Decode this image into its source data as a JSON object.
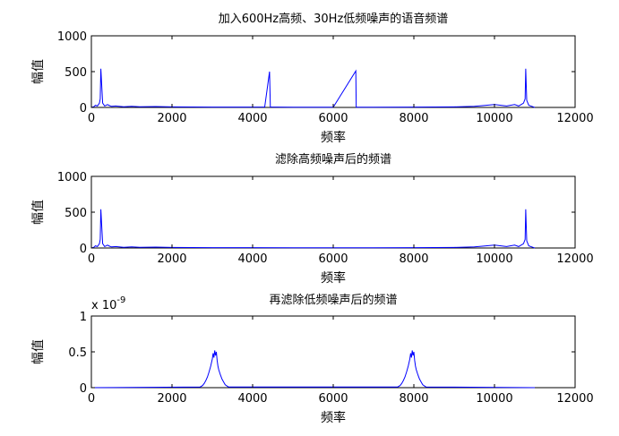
{
  "colors": {
    "spectrum": "#0000ff",
    "axes": "#000000",
    "background": "#ffffff"
  },
  "chart_data": [
    {
      "type": "line",
      "title": "加入600Hz高频、30Hz低频噪声的语音频谱",
      "xlabel": "频率",
      "ylabel": "幅值",
      "xlim": [
        0,
        12000
      ],
      "ylim": [
        0,
        1000
      ],
      "xticks": [
        "0",
        "2000",
        "4000",
        "6000",
        "8000",
        "10000",
        "12000"
      ],
      "yticks": [
        "0",
        "500",
        "1000"
      ],
      "scale_label": "",
      "grid": false,
      "series": [
        {
          "x": [
            0,
            60,
            100,
            150,
            200,
            220,
            235,
            280,
            330,
            400,
            450,
            500,
            600,
            800,
            1000,
            1200,
            1600,
            2000,
            3000,
            4000,
            4300,
            4420,
            4440,
            4600,
            5000,
            6000,
            6560,
            6570,
            7000,
            8000,
            9000,
            9500,
            9700,
            10000,
            10300,
            10500,
            10600,
            10720,
            10760,
            10775,
            10800,
            10850,
            10950,
            11000
          ],
          "y": [
            0,
            10,
            30,
            20,
            60,
            120,
            540,
            60,
            20,
            40,
            25,
            15,
            20,
            10,
            15,
            10,
            12,
            8,
            5,
            4,
            6,
            500,
            6,
            4,
            3,
            3,
            510,
            3,
            3,
            4,
            8,
            15,
            25,
            40,
            20,
            40,
            20,
            60,
            120,
            540,
            100,
            30,
            10,
            0
          ]
        }
      ]
    },
    {
      "type": "line",
      "title": "滤除高频噪声后的频谱",
      "xlabel": "频率",
      "ylabel": "幅值",
      "xlim": [
        0,
        12000
      ],
      "ylim": [
        0,
        1000
      ],
      "xticks": [
        "0",
        "2000",
        "4000",
        "6000",
        "8000",
        "10000",
        "12000"
      ],
      "yticks": [
        "0",
        "500",
        "1000"
      ],
      "scale_label": "",
      "grid": false,
      "series": [
        {
          "x": [
            0,
            60,
            100,
            150,
            200,
            220,
            235,
            280,
            330,
            400,
            450,
            500,
            600,
            800,
            1000,
            1200,
            1600,
            2000,
            3000,
            4000,
            5000,
            6000,
            7000,
            8000,
            9000,
            9500,
            9700,
            10000,
            10300,
            10500,
            10600,
            10720,
            10760,
            10775,
            10800,
            10850,
            10950,
            11000
          ],
          "y": [
            0,
            10,
            30,
            20,
            60,
            120,
            540,
            60,
            20,
            40,
            25,
            15,
            20,
            10,
            15,
            10,
            12,
            8,
            5,
            4,
            3,
            3,
            3,
            4,
            8,
            15,
            25,
            40,
            20,
            40,
            20,
            60,
            120,
            540,
            100,
            30,
            10,
            0
          ]
        }
      ]
    },
    {
      "type": "line",
      "title": "再滤除低频噪声后的频谱",
      "xlabel": "频率",
      "ylabel": "幅值",
      "xlim": [
        0,
        12000
      ],
      "ylim": [
        0,
        1
      ],
      "xticks": [
        "0",
        "2000",
        "4000",
        "6000",
        "8000",
        "10000",
        "12000"
      ],
      "yticks": [
        "0",
        "0.5",
        "1"
      ],
      "scale_label": "x 10-9",
      "scale_base": "x 10",
      "scale_exp": "-9",
      "grid": false,
      "series": [
        {
          "x": [
            0,
            2700,
            2760,
            2800,
            2840,
            2880,
            2920,
            2960,
            3000,
            3020,
            3040,
            3060,
            3080,
            3100,
            3120,
            3140,
            3160,
            3200,
            3240,
            3280,
            3320,
            3400,
            7600,
            7660,
            7700,
            7740,
            7780,
            7820,
            7860,
            7900,
            7920,
            7940,
            7960,
            7980,
            8000,
            8020,
            8040,
            8060,
            8100,
            8140,
            8180,
            8220,
            8300,
            11000
          ],
          "y": [
            0,
            0.01,
            0.03,
            0.06,
            0.1,
            0.15,
            0.22,
            0.3,
            0.4,
            0.48,
            0.42,
            0.52,
            0.45,
            0.5,
            0.38,
            0.3,
            0.25,
            0.18,
            0.12,
            0.08,
            0.04,
            0.01,
            0.01,
            0.03,
            0.06,
            0.1,
            0.15,
            0.22,
            0.3,
            0.4,
            0.48,
            0.42,
            0.52,
            0.45,
            0.5,
            0.38,
            0.3,
            0.25,
            0.18,
            0.12,
            0.08,
            0.04,
            0.01,
            0
          ]
        }
      ]
    }
  ]
}
